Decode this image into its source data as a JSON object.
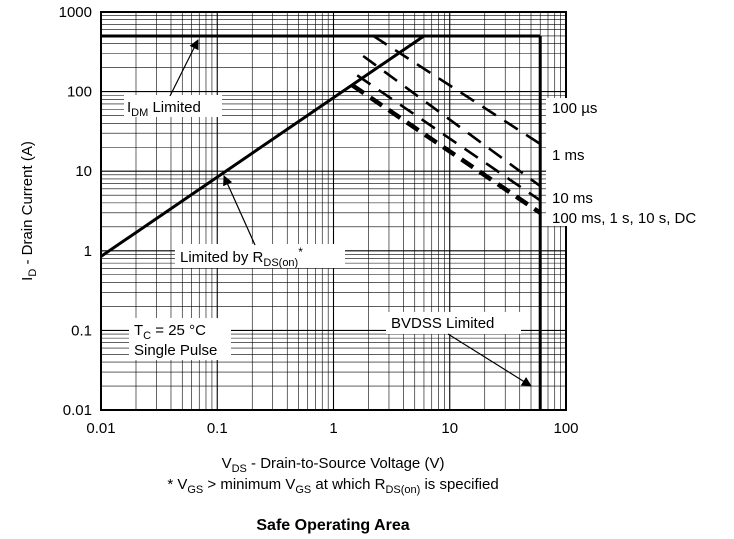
{
  "chart_data": {
    "type": "line",
    "title": "Safe Operating Area",
    "x_scale": "log",
    "y_scale": "log",
    "xlim": [
      0.01,
      100
    ],
    "ylim": [
      0.01,
      1000
    ],
    "x_ticks": [
      "0.01",
      "0.1",
      "1",
      "10",
      "100"
    ],
    "y_ticks": [
      "0.01",
      "0.1",
      "1",
      "10",
      "100",
      "1000"
    ],
    "grid": true,
    "xlabel": {
      "main": "V",
      "sub": "DS",
      "rest": " - Drain-to-Source Voltage (V)"
    },
    "ylabel": {
      "main": "I",
      "sub": "D",
      "rest": " - Drain Current (A)"
    },
    "footnote": {
      "p1": "* V",
      "s1": "GS",
      "p2": " > minimum V",
      "s2": "GS",
      "p3": " at which R",
      "s3": "DS(on)",
      "p4": " is specified"
    },
    "boundaries": {
      "idm_limited": {
        "x": [
          0.01,
          60
        ],
        "y": [
          500,
          500
        ]
      },
      "rds_on_limited": {
        "x": [
          0.01,
          6
        ],
        "y": [
          0.85,
          500
        ]
      },
      "bvdss_limited": {
        "x": [
          60,
          60
        ],
        "y": [
          0.01,
          500
        ]
      }
    },
    "pulse_curves": [
      {
        "name": "100 µs",
        "x": [
          2.2,
          60
        ],
        "y": [
          500,
          22
        ],
        "label": "100 µs"
      },
      {
        "name": "1 ms",
        "x": [
          1.8,
          60
        ],
        "y": [
          280,
          6.5
        ],
        "label": "1 ms"
      },
      {
        "name": "10 ms",
        "x": [
          1.6,
          60
        ],
        "y": [
          160,
          4.3
        ],
        "label": "10 ms"
      },
      {
        "name": "100 ms, 1 s, 10 s, DC",
        "x": [
          1.45,
          60
        ],
        "y": [
          120,
          3
        ],
        "label": "100 ms, 1 s, 10 s, DC"
      }
    ],
    "annotations": {
      "idm": {
        "main": "I",
        "sub": "DM",
        "rest": " Limited"
      },
      "rds": {
        "main": "Limited by R",
        "sub": "DS(on)",
        "rest": "*"
      },
      "bvdss": "BVDSS Limited",
      "conditions": {
        "tc_main": "T",
        "tc_sub": "C",
        "tc_rest": " = 25 °C",
        "pulse": "Single Pulse"
      }
    }
  }
}
